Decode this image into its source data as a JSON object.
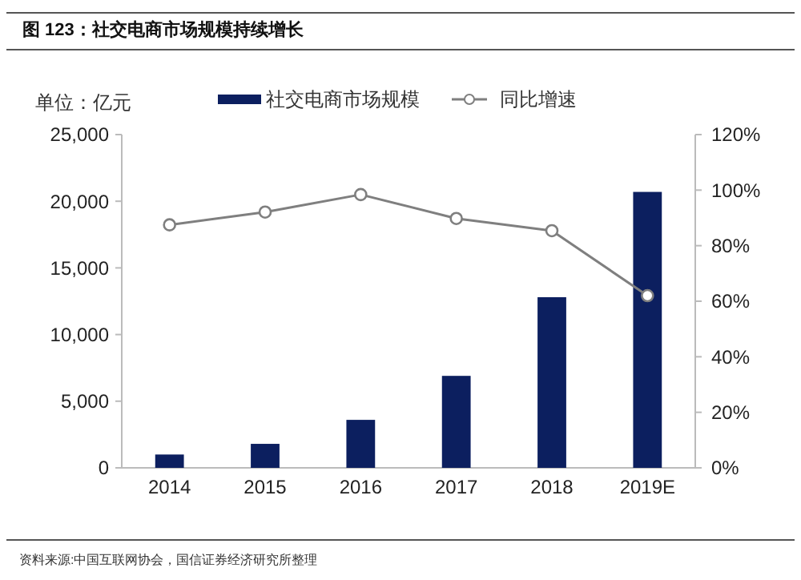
{
  "chart_data": {
    "type": "bar",
    "title": "图 123：社交电商市场规模持续增长",
    "categories": [
      "2014",
      "2015",
      "2016",
      "2017",
      "2018",
      "2019E"
    ],
    "series": [
      {
        "name": "社交电商市场规模",
        "color": "#0c1f5f",
        "values": [
          1000,
          1800,
          3600,
          6900,
          12800,
          20700
        ]
      },
      {
        "name": "同比增速",
        "type": "line",
        "axis": "y2",
        "color": "#7f7f7f",
        "marker": "circle",
        "values": [
          87.5,
          92.1,
          98.4,
          89.8,
          85.4,
          62
        ]
      }
    ],
    "ylim": [
      0,
      25000
    ],
    "yticks": [
      {
        "value": 0,
        "label": "0"
      },
      {
        "value": 5000,
        "label": "5,000"
      },
      {
        "value": 10000,
        "label": "10,000"
      },
      {
        "value": 15000,
        "label": "15,000"
      },
      {
        "value": 20000,
        "label": "20,000"
      },
      {
        "value": 25000,
        "label": "25,000"
      }
    ],
    "y2lim": [
      0,
      120
    ],
    "y2ticks": [
      {
        "value": 0,
        "label": "0%"
      },
      {
        "value": 20,
        "label": "20%"
      },
      {
        "value": 40,
        "label": "40%"
      },
      {
        "value": 60,
        "label": "60%"
      },
      {
        "value": 80,
        "label": "80%"
      },
      {
        "value": 100,
        "label": "100%"
      },
      {
        "value": 120,
        "label": "120%"
      }
    ],
    "legend": "top",
    "grid": false,
    "annotations": [
      "单位：亿元",
      "资料来源:中国互联网协会，国信证券经济研究所整理"
    ]
  }
}
